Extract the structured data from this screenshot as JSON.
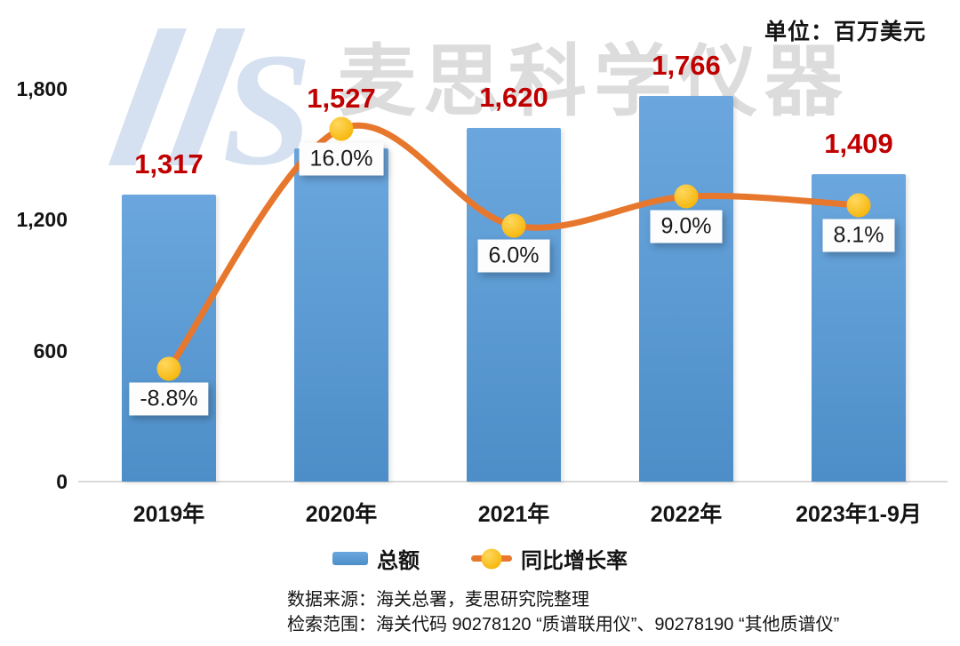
{
  "unit_label": "单位：百万美元",
  "watermark": {
    "logo_text": "MS",
    "brand_text": "麦思科学仪器"
  },
  "legend": {
    "bar_label": "总额",
    "line_label": "同比增长率"
  },
  "footer": {
    "line1": "数据来源：海关总署，麦思研究院整理",
    "line2": "检索范围：海关代码 90278120 “质谱联用仪”、90278190 “其他质谱仪”"
  },
  "colors": {
    "bar": "#5B9BD5",
    "bar_top": "#6BA7DE",
    "bar_bottom": "#4D8EC8",
    "line": "#E8772E",
    "marker": "#F7B70E",
    "marker_highlight": "#FFD85E",
    "value_label": "#C00000",
    "watermark_text": "#DCDCDC",
    "watermark_logo": "#D5E0F0",
    "axis_line": "#D9D9D9",
    "text": "#141414"
  },
  "chart_data": {
    "type": "combo",
    "title": "",
    "unit": "百万美元",
    "categories": [
      "2019年",
      "2020年",
      "2021年",
      "2022年",
      "2023年1-9月"
    ],
    "series": [
      {
        "name": "总额",
        "type": "bar",
        "axis": "primary",
        "values": [
          1317,
          1527,
          1620,
          1766,
          1409
        ],
        "labels": [
          "1,317",
          "1,527",
          "1,620",
          "1,766",
          "1,409"
        ]
      },
      {
        "name": "同比增长率",
        "type": "line",
        "axis": "secondary",
        "values": [
          -8.8,
          16.0,
          6.0,
          9.0,
          8.1
        ],
        "labels": [
          "-8.8%",
          "16.0%",
          "6.0%",
          "9.0%",
          "8.1%"
        ]
      }
    ],
    "y_axis": {
      "min": 0,
      "max": 1800,
      "ticks": [
        {
          "label": "1,800",
          "value": 1800
        },
        {
          "label": "1,200",
          "value": 1200
        },
        {
          "label": "600",
          "value": 600
        },
        {
          "label": "0",
          "value": 0
        }
      ]
    },
    "grid": false,
    "legend_position": "bottom"
  }
}
